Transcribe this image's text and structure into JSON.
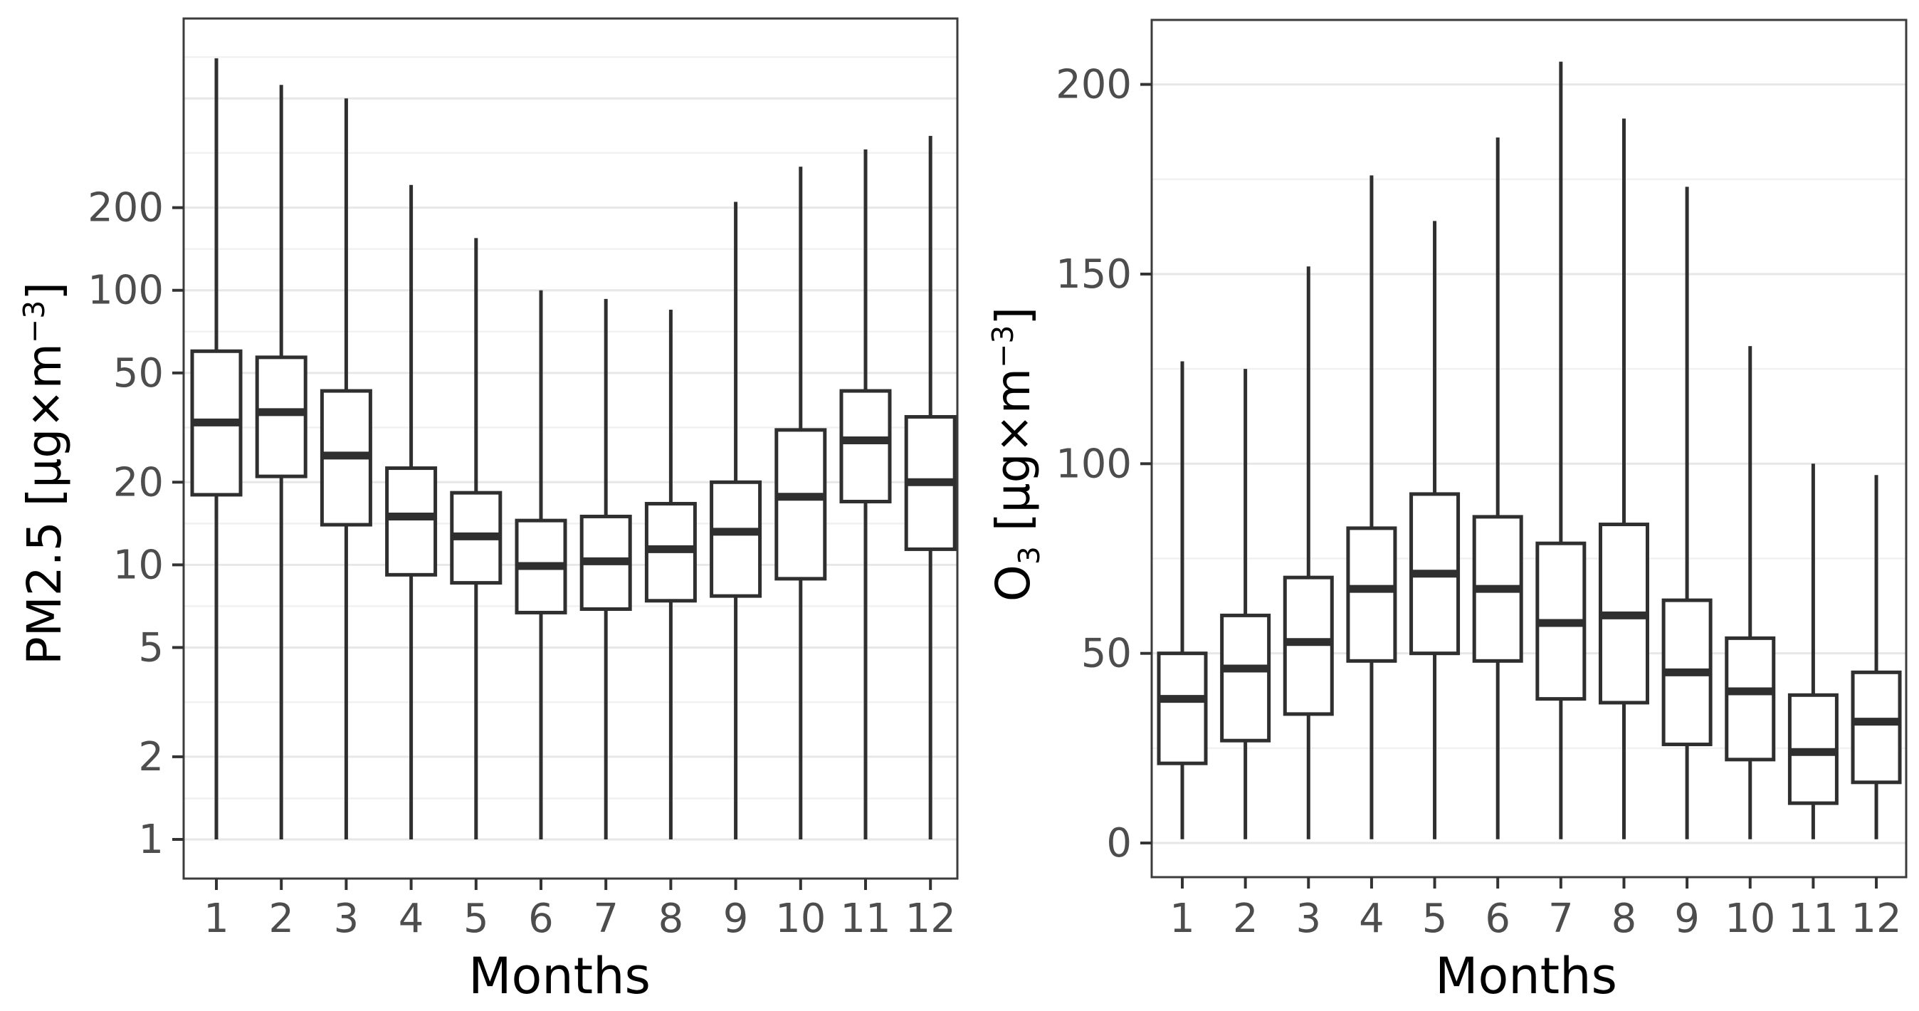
{
  "style": {
    "background": "#ffffff",
    "panel_border_color": "#3c3c3c",
    "grid_major_color": "#e7e7e7",
    "grid_minor_color": "#f1f1f1",
    "box_line_color": "#2f2f2f",
    "box_fill_color": "#ffffff",
    "tick_mark_color": "#333333",
    "tick_label_color": "#4d4d4d",
    "axis_title_color": "#000000"
  },
  "chart_data": [
    {
      "id": "pm25",
      "type": "boxplot",
      "title": "",
      "xlabel": "Months",
      "ylabel_text": "PM2.5 [µg×m⁻³]",
      "ylabel_parts": {
        "pre": "PM2.5 [µg×m",
        "sup": "−3",
        "post": "]"
      },
      "yscale": "log10",
      "ylim": [
        0.72,
        977
      ],
      "grid": true,
      "legend": "none",
      "categories": [
        "1",
        "2",
        "3",
        "4",
        "5",
        "6",
        "7",
        "8",
        "9",
        "10",
        "11",
        "12"
      ],
      "yticks": [
        {
          "label": "200",
          "value": 200
        },
        {
          "label": "100",
          "value": 100
        },
        {
          "label": "50",
          "value": 50
        },
        {
          "label": "20",
          "value": 20
        },
        {
          "label": "10",
          "value": 10
        },
        {
          "label": "5",
          "value": 5
        },
        {
          "label": "2",
          "value": 2
        },
        {
          "label": "1",
          "value": 1
        }
      ],
      "unlabeled_major_gridlines": [
        500
      ],
      "minor_gridlines": [
        1.41,
        3.16,
        7.07,
        14.14,
        31.62,
        70.71,
        141.4,
        316.2,
        707.1
      ],
      "boxes": [
        {
          "month": "1",
          "whisker_low": 1,
          "q1": 18,
          "median": 33,
          "q3": 60,
          "whisker_high": 700
        },
        {
          "month": "2",
          "whisker_low": 1,
          "q1": 21,
          "median": 36,
          "q3": 57,
          "whisker_high": 560
        },
        {
          "month": "3",
          "whisker_low": 1,
          "q1": 14,
          "median": 25,
          "q3": 43,
          "whisker_high": 500
        },
        {
          "month": "4",
          "whisker_low": 1,
          "q1": 9.2,
          "median": 15,
          "q3": 22.5,
          "whisker_high": 242
        },
        {
          "month": "5",
          "whisker_low": 1,
          "q1": 8.6,
          "median": 12.7,
          "q3": 18.3,
          "whisker_high": 155
        },
        {
          "month": "6",
          "whisker_low": 1,
          "q1": 6.7,
          "median": 9.9,
          "q3": 14.5,
          "whisker_high": 100
        },
        {
          "month": "7",
          "whisker_low": 1,
          "q1": 6.9,
          "median": 10.3,
          "q3": 15,
          "whisker_high": 93
        },
        {
          "month": "8",
          "whisker_low": 1,
          "q1": 7.4,
          "median": 11.4,
          "q3": 16.7,
          "whisker_high": 85
        },
        {
          "month": "9",
          "whisker_low": 1,
          "q1": 7.7,
          "median": 13.2,
          "q3": 20,
          "whisker_high": 210
        },
        {
          "month": "10",
          "whisker_low": 1,
          "q1": 8.9,
          "median": 17.7,
          "q3": 31,
          "whisker_high": 282
        },
        {
          "month": "11",
          "whisker_low": 1,
          "q1": 17,
          "median": 28.4,
          "q3": 43,
          "whisker_high": 326
        },
        {
          "month": "12",
          "whisker_low": 1,
          "q1": 11.4,
          "median": 20,
          "q3": 34.6,
          "whisker_high": 365
        }
      ]
    },
    {
      "id": "o3",
      "type": "boxplot",
      "title": "",
      "xlabel": "Months",
      "ylabel_text": "O₃ [µg×m⁻³]",
      "ylabel_parts": {
        "pre1": "O",
        "sub": "3",
        "pre2": " [µg×m",
        "sup": "−3",
        "post": "]"
      },
      "yscale": "linear",
      "ylim": [
        -9,
        217
      ],
      "grid": true,
      "legend": "none",
      "categories": [
        "1",
        "2",
        "3",
        "4",
        "5",
        "6",
        "7",
        "8",
        "9",
        "10",
        "11",
        "12"
      ],
      "yticks": [
        {
          "label": "200",
          "value": 200
        },
        {
          "label": "150",
          "value": 150
        },
        {
          "label": "100",
          "value": 100
        },
        {
          "label": "50",
          "value": 50
        },
        {
          "label": "0",
          "value": 0
        }
      ],
      "unlabeled_major_gridlines": [],
      "minor_gridlines": [
        175,
        125,
        75,
        25
      ],
      "boxes": [
        {
          "month": "1",
          "whisker_low": 1,
          "q1": 21,
          "median": 38,
          "q3": 50,
          "whisker_high": 127
        },
        {
          "month": "2",
          "whisker_low": 1,
          "q1": 27,
          "median": 46,
          "q3": 60,
          "whisker_high": 125
        },
        {
          "month": "3",
          "whisker_low": 1,
          "q1": 34,
          "median": 53,
          "q3": 70,
          "whisker_high": 152
        },
        {
          "month": "4",
          "whisker_low": 1,
          "q1": 48,
          "median": 67,
          "q3": 83,
          "whisker_high": 176
        },
        {
          "month": "5",
          "whisker_low": 1,
          "q1": 50,
          "median": 71,
          "q3": 92,
          "whisker_high": 164
        },
        {
          "month": "6",
          "whisker_low": 1,
          "q1": 48,
          "median": 67,
          "q3": 86,
          "whisker_high": 186
        },
        {
          "month": "7",
          "whisker_low": 1,
          "q1": 38,
          "median": 58,
          "q3": 79,
          "whisker_high": 206
        },
        {
          "month": "8",
          "whisker_low": 1,
          "q1": 37,
          "median": 60,
          "q3": 84,
          "whisker_high": 191
        },
        {
          "month": "9",
          "whisker_low": 1,
          "q1": 26,
          "median": 45,
          "q3": 64,
          "whisker_high": 173
        },
        {
          "month": "10",
          "whisker_low": 1,
          "q1": 22,
          "median": 40,
          "q3": 54,
          "whisker_high": 131
        },
        {
          "month": "11",
          "whisker_low": 1,
          "q1": 10.5,
          "median": 24,
          "q3": 39,
          "whisker_high": 100
        },
        {
          "month": "12",
          "whisker_low": 1,
          "q1": 16,
          "median": 32,
          "q3": 45,
          "whisker_high": 97
        }
      ]
    }
  ]
}
